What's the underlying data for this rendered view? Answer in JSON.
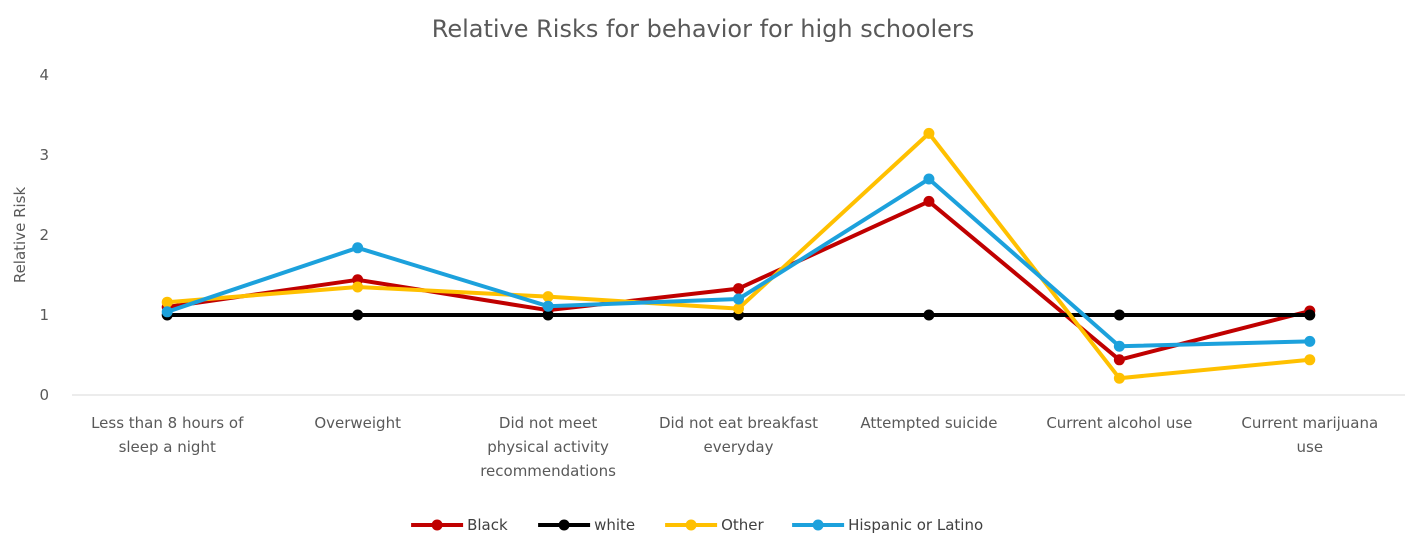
{
  "chart_data": {
    "type": "line",
    "title": "Relative Risks for behavior for high schoolers",
    "xlabel": "",
    "ylabel": "Relative Risk",
    "ylim": [
      0,
      4
    ],
    "yticks": [
      "0",
      "1",
      "2",
      "3",
      "4"
    ],
    "grid": false,
    "legend_position": "bottom",
    "categories": [
      [
        "Less than 8 hours of",
        "sleep a night"
      ],
      [
        "Overweight"
      ],
      [
        "Did not meet",
        "physical activity",
        "recommendations"
      ],
      [
        "Did not eat breakfast",
        "everyday"
      ],
      [
        "Attempted suicide"
      ],
      [
        "Current alcohol use"
      ],
      [
        "Current marijuana",
        "use"
      ]
    ],
    "series": [
      {
        "name": "Black",
        "color": "#C00000",
        "values": [
          1.1,
          1.44,
          1.06,
          1.33,
          2.42,
          0.44,
          1.05
        ]
      },
      {
        "name": "white",
        "color": "#000000",
        "values": [
          1.0,
          1.0,
          1.0,
          1.0,
          1.0,
          1.0,
          1.0
        ]
      },
      {
        "name": "Other",
        "color": "#FFC000",
        "values": [
          1.16,
          1.35,
          1.23,
          1.08,
          3.27,
          0.21,
          0.44
        ]
      },
      {
        "name": "Hispanic or Latino",
        "color": "#1CA1DC",
        "values": [
          1.04,
          1.84,
          1.11,
          1.2,
          2.7,
          0.61,
          0.67
        ]
      }
    ]
  }
}
